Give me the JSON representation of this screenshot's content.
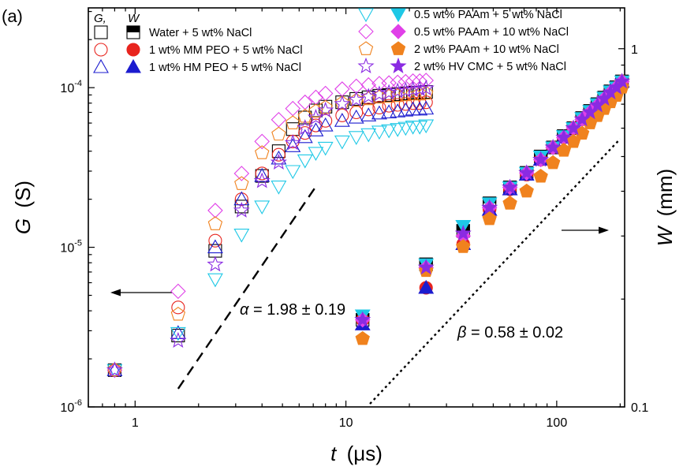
{
  "panel_label": "(a)",
  "chart_data": {
    "type": "scatter",
    "x_axis": {
      "label_symbol": "t",
      "label_unit": "(μs)",
      "scale": "log",
      "range": [
        0.6,
        210
      ],
      "ticks": [
        {
          "value": 1,
          "label": "1"
        },
        {
          "value": 10,
          "label": "10"
        },
        {
          "value": 100,
          "label": "100"
        }
      ]
    },
    "y_axis_left": {
      "label_symbol": "G",
      "label_unit": "(S)",
      "scale": "log",
      "range": [
        1e-06,
        0.000316
      ],
      "ticks": [
        {
          "value": 1e-06,
          "base": "10",
          "exp": "-6"
        },
        {
          "value": 1e-05,
          "base": "10",
          "exp": "-5"
        },
        {
          "value": 0.0001,
          "base": "10",
          "exp": "-4"
        }
      ]
    },
    "y_axis_right": {
      "label_symbol": "W",
      "label_unit": "(mm)",
      "scale": "log",
      "range": [
        0.1,
        1.3
      ],
      "ticks": [
        {
          "value": 0.1,
          "label": "0.1"
        },
        {
          "value": 1,
          "label": "1"
        }
      ]
    },
    "legend": {
      "placement": "top",
      "header_g": "G,",
      "header_w": "W",
      "entries": [
        "Water + 5 wt% NaCl",
        "1 wt% MM PEO + 5 wt% NaCl",
        "1 wt% HM PEO + 5 wt% NaCl",
        "0.5 wt% PAAm + 5 wt% NaCl",
        "0.5 wt% PAAm + 10 wt% NaCl",
        "2 wt% PAAm + 10 wt% NaCl",
        "2 wt% HV CMC + 5 wt% NaCl"
      ]
    },
    "series": [
      {
        "name": "Water + 5 wt% NaCl",
        "marker": "square",
        "color": "#000000",
        "G": {
          "t": [
            0.8,
            1.6,
            2.4,
            3.2,
            4.0,
            4.8,
            5.6,
            6.4,
            7.2,
            8.0,
            9.6,
            11.2,
            12.8,
            14.4,
            16.0,
            17.6,
            19.2,
            20.8,
            22.4,
            24.0
          ],
          "values": [
            1.7e-06,
            2.8e-06,
            9.5e-06,
            1.8e-05,
            2.8e-05,
            4e-05,
            5.5e-05,
            6.5e-05,
            7.2e-05,
            7.6e-05,
            8.1e-05,
            8.5e-05,
            8.7e-05,
            8.9e-05,
            9e-05,
            9.1e-05,
            9.2e-05,
            9.3e-05,
            9.3e-05,
            9.4e-05
          ]
        },
        "W": {
          "t": [
            12,
            24,
            36,
            48,
            60,
            72,
            84,
            96,
            108,
            120,
            132,
            144,
            156,
            168,
            180,
            192,
            204
          ],
          "values": [
            0.175,
            0.25,
            0.31,
            0.37,
            0.41,
            0.45,
            0.5,
            0.53,
            0.57,
            0.6,
            0.64,
            0.67,
            0.7,
            0.73,
            0.76,
            0.78,
            0.81
          ]
        }
      },
      {
        "name": "1 wt% MM PEO + 5 wt% NaCl",
        "marker": "circle",
        "color": "#e8241e",
        "G": {
          "t": [
            0.8,
            1.6,
            2.4,
            3.2,
            4.0,
            4.8,
            5.6,
            6.4,
            7.2,
            8.0,
            9.6,
            11.2,
            12.8,
            14.4,
            16.0,
            17.6,
            19.2,
            20.8,
            22.4,
            24.0
          ],
          "values": [
            1.7e-06,
            4.2e-06,
            1.1e-05,
            2e-05,
            2.9e-05,
            3.8e-05,
            4.6e-05,
            5.2e-05,
            5.8e-05,
            6.2e-05,
            6.7e-05,
            7e-05,
            7.3e-05,
            7.5e-05,
            7.7e-05,
            7.8e-05,
            7.9e-05,
            8e-05,
            8e-05,
            8.1e-05
          ]
        },
        "W": {
          "t": [
            12,
            24,
            36,
            48,
            60,
            72,
            84,
            96,
            108,
            120,
            132,
            144,
            156,
            168,
            180,
            192,
            204
          ],
          "values": [
            0.175,
            0.215,
            0.285,
            0.355,
            0.405,
            0.445,
            0.49,
            0.53,
            0.565,
            0.6,
            0.635,
            0.665,
            0.695,
            0.725,
            0.755,
            0.78,
            0.81
          ]
        }
      },
      {
        "name": "1 wt% HM PEO + 5 wt% NaCl",
        "marker": "triangle-up",
        "color": "#1c1ccf",
        "G": {
          "t": [
            0.8,
            1.6,
            2.4,
            3.2,
            4.0,
            4.8,
            5.6,
            6.4,
            7.2,
            8.0,
            9.6,
            11.2,
            12.8,
            14.4,
            16.0,
            17.6,
            19.2,
            20.8,
            22.4,
            24.0
          ],
          "values": [
            1.7e-06,
            2.9e-06,
            1e-05,
            2e-05,
            2.8e-05,
            3.6e-05,
            4.3e-05,
            4.9e-05,
            5.4e-05,
            5.8e-05,
            6.2e-05,
            6.5e-05,
            6.7e-05,
            6.9e-05,
            7e-05,
            7.1e-05,
            7.2e-05,
            7.3e-05,
            7.3e-05,
            7.4e-05
          ]
        },
        "W": {
          "t": [
            12,
            24,
            36,
            48,
            60,
            72,
            84,
            96,
            108,
            120,
            132,
            144,
            156,
            168,
            180,
            192,
            204
          ],
          "values": [
            0.17,
            0.215,
            0.285,
            0.355,
            0.405,
            0.445,
            0.49,
            0.53,
            0.565,
            0.6,
            0.635,
            0.665,
            0.695,
            0.725,
            0.755,
            0.78,
            0.81
          ]
        }
      },
      {
        "name": "0.5 wt% PAAm + 5 wt% NaCl",
        "marker": "triangle-down",
        "color": "#1ec8e6",
        "G": {
          "t": [
            0.8,
            1.6,
            2.4,
            3.2,
            4.0,
            4.8,
            5.6,
            6.4,
            7.2,
            8.0,
            9.6,
            11.2,
            12.8,
            14.4,
            16.0,
            17.6,
            19.2,
            20.8,
            22.4,
            24.0
          ],
          "values": [
            1.7e-06,
            2.9e-06,
            6.3e-06,
            1.2e-05,
            1.8e-05,
            2.4e-05,
            3e-05,
            3.5e-05,
            3.9e-05,
            4.2e-05,
            4.6e-05,
            4.9e-05,
            5.1e-05,
            5.3e-05,
            5.4e-05,
            5.5e-05,
            5.6e-05,
            5.7e-05,
            5.7e-05,
            5.8e-05
          ]
        },
        "W": {
          "t": [
            12,
            24,
            36,
            48,
            60,
            72,
            84,
            96,
            108,
            120,
            132,
            144,
            156,
            168,
            180,
            192,
            204
          ],
          "values": [
            0.18,
            0.25,
            0.32,
            0.37,
            0.41,
            0.45,
            0.5,
            0.53,
            0.57,
            0.6,
            0.64,
            0.67,
            0.7,
            0.73,
            0.76,
            0.78,
            0.81
          ]
        }
      },
      {
        "name": "0.5 wt% PAAm + 10 wt% NaCl",
        "marker": "diamond",
        "color": "#e040e8",
        "G": {
          "t": [
            0.8,
            1.6,
            2.4,
            3.2,
            4.0,
            4.8,
            5.6,
            6.4,
            7.2,
            8.0,
            9.6,
            11.2,
            12.8,
            14.4,
            16.0,
            17.6,
            19.2,
            20.8,
            22.4,
            24.0
          ],
          "values": [
            1.7e-06,
            5.3e-06,
            1.7e-05,
            2.9e-05,
            4.6e-05,
            6.3e-05,
            7.4e-05,
            8.1e-05,
            8.7e-05,
            9.2e-05,
            9.8e-05,
            0.000102,
            0.000104,
            0.000106,
            0.000107,
            0.000108,
            0.000109,
            0.00011,
            0.00011,
            0.000111
          ]
        },
        "W": {
          "t": [
            12,
            24,
            36,
            48,
            60,
            72,
            84,
            96,
            108,
            120,
            132,
            144,
            156,
            168,
            180,
            192,
            204
          ],
          "values": [
            0.175,
            0.245,
            0.3,
            0.36,
            0.41,
            0.45,
            0.49,
            0.53,
            0.565,
            0.6,
            0.635,
            0.665,
            0.695,
            0.725,
            0.755,
            0.78,
            0.81
          ]
        }
      },
      {
        "name": "2 wt% PAAm + 10 wt% NaCl",
        "marker": "pentagon",
        "color": "#f0821e",
        "G": {
          "t": [
            0.8,
            1.6,
            2.4,
            3.2,
            4.0,
            4.8,
            5.6,
            6.4,
            7.2,
            8.0,
            9.6,
            11.2,
            12.8,
            14.4,
            16.0,
            17.6,
            19.2,
            20.8,
            22.4,
            24.0
          ],
          "values": [
            1.7e-06,
            3.8e-06,
            1.4e-05,
            2.5e-05,
            3.9e-05,
            5.1e-05,
            6e-05,
            6.6e-05,
            7.1e-05,
            7.5e-05,
            8e-05,
            8.3e-05,
            8.5e-05,
            8.7e-05,
            8.8e-05,
            8.9e-05,
            9e-05,
            9.1e-05,
            9.1e-05,
            9.2e-05
          ]
        },
        "W": {
          "t": [
            12,
            24,
            36,
            48,
            60,
            72,
            84,
            96,
            108,
            120,
            132,
            144,
            156,
            168,
            180,
            192,
            204
          ],
          "values": [
            0.155,
            0.24,
            0.28,
            0.335,
            0.37,
            0.4,
            0.44,
            0.48,
            0.52,
            0.55,
            0.58,
            0.62,
            0.65,
            0.68,
            0.71,
            0.74,
            0.78
          ]
        }
      },
      {
        "name": "2 wt% HV CMC + 5 wt% NaCl",
        "marker": "star",
        "color": "#8a2be2",
        "G": {
          "t": [
            0.8,
            1.6,
            2.4,
            3.2,
            4.0,
            4.8,
            5.6,
            6.4,
            7.2,
            8.0,
            9.6,
            11.2,
            12.8,
            14.4,
            16.0,
            17.6,
            19.2,
            20.8,
            22.4,
            24.0
          ],
          "values": [
            1.7e-06,
            2.6e-06,
            7.8e-06,
            1.7e-05,
            2.6e-05,
            3.4e-05,
            4.5e-05,
            5.6e-05,
            6.5e-05,
            7.2e-05,
            7.9e-05,
            8.4e-05,
            8.8e-05,
            9.1e-05,
            9.3e-05,
            9.5e-05,
            9.6e-05,
            9.7e-05,
            9.8e-05,
            9.9e-05
          ]
        },
        "W": {
          "t": [
            12,
            24,
            36,
            48,
            60,
            72,
            84,
            96,
            108,
            120,
            132,
            144,
            156,
            168,
            180,
            192,
            204
          ],
          "values": [
            0.175,
            0.245,
            0.305,
            0.36,
            0.41,
            0.45,
            0.49,
            0.53,
            0.565,
            0.6,
            0.635,
            0.665,
            0.695,
            0.725,
            0.755,
            0.78,
            0.81
          ]
        }
      }
    ],
    "fit_lines": [
      {
        "name": "alpha-fit",
        "axis": "left",
        "style": "dashed",
        "x": [
          1.6,
          7.2
        ],
        "y": [
          1.3e-06,
          2.4e-05
        ]
      },
      {
        "name": "beta-fit",
        "axis": "right",
        "style": "dotted",
        "x": [
          13.0,
          200
        ],
        "y": [
          0.102,
          0.56
        ]
      }
    ],
    "annotations": {
      "alpha": {
        "symbol": "α",
        "text": " = 1.98 ± 0.19"
      },
      "beta": {
        "symbol": "β",
        "text": " = 0.58 ± 0.02"
      }
    },
    "arrows": [
      {
        "name": "arrow-left",
        "direction": "left",
        "axis": "left"
      },
      {
        "name": "arrow-right",
        "direction": "right",
        "axis": "right"
      }
    ]
  }
}
